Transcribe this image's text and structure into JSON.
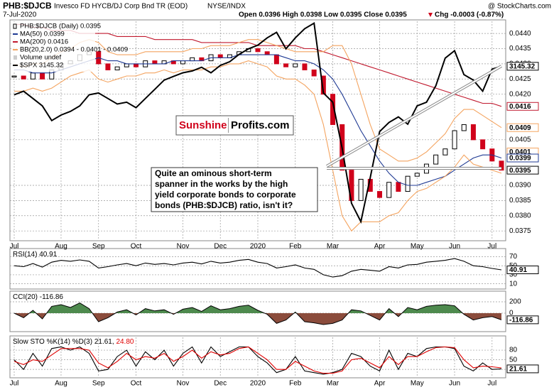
{
  "header": {
    "symbol": "PHB:$DJCB",
    "name": "Invesco FD HYCB/DJ Corp Bnd TR (EOD)",
    "exchange": "NYSE/INDX",
    "source": "@ StockCharts.com",
    "date": "7-Jul-2020",
    "ohlc": "Open 0.0396  High 0.0398  Low 0.0395  Close 0.0395",
    "change": "Chg -0.0003 (-0.87%)"
  },
  "logo": {
    "brand": "Sunshine",
    "domain": "Profits.com"
  },
  "chart_data": [
    {
      "type": "candlestick",
      "categories": [
        "Jul",
        null,
        null,
        null,
        null,
        "Aug",
        null,
        null,
        null,
        "Sep",
        null,
        null,
        null,
        "Oct",
        null,
        null,
        null,
        null,
        "Nov",
        null,
        null,
        null,
        "Dec",
        null,
        null,
        null,
        "2020",
        null,
        null,
        null,
        "Feb",
        null,
        null,
        null,
        "Mar",
        null,
        null,
        null,
        null,
        "Apr",
        null,
        null,
        null,
        "May",
        null,
        null,
        null,
        "Jun",
        null,
        null,
        null,
        "Jul",
        null
      ],
      "ylim": [
        0.0372,
        0.0444
      ],
      "y2lim": [
        2200,
        3390
      ],
      "grid": true,
      "yticks": [
        {
          "value": 0.0375,
          "label": "0.0375"
        },
        {
          "value": 0.038,
          "label": "0.0380"
        },
        {
          "value": 0.0385,
          "label": "0.0385"
        },
        {
          "value": 0.039,
          "label": "0.0390"
        },
        {
          "value": 0.0405,
          "label": "0.0405"
        },
        {
          "value": 0.042,
          "label": "0.0420"
        },
        {
          "value": 0.0425,
          "label": "0.0425"
        },
        {
          "value": 0.043,
          "label": "0.0430"
        },
        {
          "value": 0.0435,
          "label": "0.0435"
        },
        {
          "value": 0.044,
          "label": "0.0440"
        }
      ],
      "volume": "Volume undef",
      "series": [
        {
          "name": "PHB:$DJCB (Daily) 0.0395",
          "type": "candlestick",
          "color": "#000000",
          "color_down": "#d0021b",
          "values": [
            0.0426,
            0.0425,
            0.0427,
            0.0425,
            0.0428,
            0.043,
            0.0431,
            0.0433,
            0.0434,
            0.043,
            0.0428,
            0.0429,
            0.043,
            0.0429,
            0.0431,
            0.043,
            0.0431,
            0.043,
            0.0431,
            0.0432,
            0.0431,
            0.0433,
            0.0432,
            0.0433,
            0.0434,
            0.0435,
            0.0434,
            0.0433,
            0.043,
            0.0429,
            0.043,
            0.0428,
            0.0426,
            0.042,
            0.041,
            0.0395,
            0.0385,
            0.0392,
            0.0388,
            0.0386,
            0.0391,
            0.0388,
            0.0393,
            0.0394,
            0.0397,
            0.04,
            0.0402,
            0.0408,
            0.041,
            0.0405,
            0.0402,
            0.0398,
            0.0395
          ]
        },
        {
          "name": "MA(50) 0.0399",
          "type": "line",
          "color": "#1f3a93",
          "values": [
            0.0428,
            0.0428,
            0.0427,
            0.0427,
            0.0427,
            0.0428,
            0.0429,
            0.043,
            0.0431,
            0.0432,
            0.0431,
            0.0431,
            0.043,
            0.043,
            0.043,
            0.043,
            0.043,
            0.0431,
            0.0431,
            0.0431,
            0.0431,
            0.0432,
            0.0432,
            0.0432,
            0.0433,
            0.0433,
            0.0433,
            0.0433,
            0.0433,
            0.0432,
            0.0431,
            0.0431,
            0.043,
            0.0428,
            0.0425,
            0.042,
            0.0414,
            0.0408,
            0.0403,
            0.0398,
            0.0394,
            0.0391,
            0.039,
            0.039,
            0.0391,
            0.0392,
            0.0393,
            0.0395,
            0.0397,
            0.0399,
            0.04,
            0.04,
            0.0399
          ]
        },
        {
          "name": "MA(200) 0.0416",
          "type": "line",
          "color": "#c0182d",
          "values": [
            0.0443,
            0.0443,
            0.0442,
            0.0442,
            0.0441,
            0.0441,
            0.0441,
            0.044,
            0.044,
            0.044,
            0.044,
            0.0439,
            0.0439,
            0.0439,
            0.0439,
            0.0438,
            0.0438,
            0.0438,
            0.0438,
            0.0438,
            0.0437,
            0.0437,
            0.0437,
            0.0437,
            0.0437,
            0.0437,
            0.0436,
            0.0436,
            0.0436,
            0.0436,
            0.0436,
            0.0435,
            0.0435,
            0.0434,
            0.0433,
            0.0432,
            0.0431,
            0.043,
            0.0429,
            0.0428,
            0.0427,
            0.0426,
            0.0425,
            0.0424,
            0.0423,
            0.0422,
            0.0421,
            0.042,
            0.0419,
            0.0418,
            0.0417,
            0.0417,
            0.0416
          ]
        },
        {
          "name": "BB(20,2.0) 0.0394 - 0.0401 - 0.0409",
          "type": "line",
          "color": "#f4a460",
          "values": [
            0.043,
            0.0429,
            0.043,
            0.043,
            0.0432,
            0.0434,
            0.0435,
            0.0437,
            0.0438,
            0.0437,
            0.0434,
            0.0433,
            0.0433,
            0.0433,
            0.0434,
            0.0434,
            0.0434,
            0.0434,
            0.0434,
            0.0435,
            0.0435,
            0.0436,
            0.0436,
            0.0436,
            0.0437,
            0.0438,
            0.0438,
            0.0437,
            0.0436,
            0.0435,
            0.0434,
            0.0434,
            0.0434,
            0.0434,
            0.0436,
            0.0436,
            0.043,
            0.042,
            0.041,
            0.0402,
            0.04,
            0.0398,
            0.0398,
            0.0399,
            0.0401,
            0.0404,
            0.0407,
            0.0412,
            0.0415,
            0.0415,
            0.0413,
            0.0411,
            0.0409
          ]
        },
        {
          "type": "line",
          "color": "#f4a460",
          "values": [
            0.0421,
            0.0421,
            0.0422,
            0.0421,
            0.0422,
            0.0424,
            0.0426,
            0.0427,
            0.0428,
            0.0425,
            0.0424,
            0.0425,
            0.0426,
            0.0426,
            0.0427,
            0.0427,
            0.0428,
            0.0427,
            0.0428,
            0.0428,
            0.0428,
            0.0429,
            0.0429,
            0.043,
            0.043,
            0.0431,
            0.043,
            0.0429,
            0.0426,
            0.0425,
            0.0425,
            0.0423,
            0.042,
            0.041,
            0.0395,
            0.038,
            0.0375,
            0.0378,
            0.0378,
            0.0378,
            0.038,
            0.0381,
            0.0385,
            0.0388,
            0.0389,
            0.0391,
            0.0393,
            0.0396,
            0.04,
            0.0397,
            0.0396,
            0.0395,
            0.0394
          ]
        },
        {
          "name": "$SPX 3145.32",
          "type": "line",
          "color": "#000000",
          "axis": "y2",
          "width": 2,
          "values": [
            2990,
            3010,
            2970,
            2930,
            2850,
            2880,
            2900,
            2930,
            2990,
            3000,
            2970,
            2940,
            2950,
            2920,
            2970,
            3020,
            3070,
            3090,
            3110,
            3120,
            3140,
            3110,
            3150,
            3170,
            3210,
            3240,
            3260,
            3300,
            3330,
            3240,
            3300,
            3350,
            3380,
            3000,
            2950,
            2700,
            2400,
            2300,
            2540,
            2790,
            2840,
            2870,
            2830,
            2930,
            2950,
            3040,
            3190,
            3230,
            3100,
            3070,
            3010,
            3130,
            3145.32
          ]
        }
      ],
      "tags": [
        {
          "value": 0.0416,
          "label": "0.0416",
          "color": "#c0182d"
        },
        {
          "value": 0.0409,
          "label": "0.0409",
          "color": "#f4a460"
        },
        {
          "value": 0.0401,
          "label": "0.0401",
          "color": "#f4a460"
        },
        {
          "value": 0.0399,
          "label": "0.0399",
          "color": "#1f3a93"
        },
        {
          "value": 0.0395,
          "label": "0.0395",
          "color": "#000000"
        },
        {
          "value": 3145.32,
          "label": "3145.32",
          "color": "#000000",
          "axis": "y2"
        }
      ],
      "annotation": [
        "Quite an ominous short-term",
        "spanner in the works by the high",
        "yield corporate bonds to corporate",
        "bonds (PHB:$DJCB) ratio, isn't it?"
      ]
    },
    {
      "type": "line",
      "title": "RSI(14) 40.91",
      "ylim": [
        0,
        85
      ],
      "yticks": [
        10,
        30,
        50,
        70
      ],
      "grid": true,
      "series": [
        {
          "color": "#000000",
          "values": [
            50,
            48,
            55,
            47,
            58,
            62,
            60,
            63,
            60,
            45,
            48,
            52,
            55,
            50,
            56,
            53,
            55,
            52,
            56,
            58,
            54,
            60,
            56,
            58,
            62,
            64,
            58,
            55,
            45,
            48,
            52,
            45,
            42,
            30,
            25,
            28,
            38,
            42,
            40,
            38,
            48,
            45,
            52,
            53,
            58,
            60,
            62,
            66,
            60,
            50,
            48,
            44,
            40.91
          ]
        }
      ],
      "tags": [
        {
          "value": 40.91,
          "label": "40.91",
          "color": "#000000"
        }
      ]
    },
    {
      "type": "area",
      "title": "CCI(20) -116.86",
      "ylim": [
        -312,
        362
      ],
      "yticks": [
        0,
        200
      ],
      "grid": true,
      "series": [
        {
          "color": "#000000",
          "color_up": "#4e8a4e",
          "color_down": "#8b4c3c",
          "values": [
            0,
            -80,
            50,
            -100,
            120,
            150,
            100,
            180,
            80,
            -150,
            -80,
            20,
            60,
            -30,
            80,
            40,
            60,
            -20,
            70,
            100,
            30,
            130,
            60,
            80,
            120,
            140,
            50,
            -20,
            -180,
            -120,
            20,
            -150,
            -170,
            -200,
            -180,
            -120,
            60,
            40,
            -40,
            -120,
            80,
            -60,
            100,
            60,
            120,
            140,
            150,
            130,
            -20,
            -120,
            -80,
            -60,
            -116.86
          ]
        }
      ],
      "tags": [
        {
          "value": -116.86,
          "label": "-116.86",
          "color": "#000000"
        }
      ]
    },
    {
      "type": "line",
      "title": "Slow STO %K(14) %D(3) 21.61,",
      "title_d": "24.80",
      "ylim": [
        -4,
        120
      ],
      "yticks": [
        20,
        50,
        80
      ],
      "grid": true,
      "categories": [
        "Jul",
        null,
        null,
        null,
        null,
        "Aug",
        null,
        null,
        null,
        "Sep",
        null,
        null,
        null,
        "Oct",
        null,
        null,
        null,
        null,
        "Nov",
        null,
        null,
        null,
        "Dec",
        null,
        null,
        null,
        "2020",
        null,
        null,
        null,
        "Feb",
        null,
        null,
        null,
        "Mar",
        null,
        null,
        null,
        null,
        "Apr",
        null,
        null,
        null,
        "May",
        null,
        null,
        null,
        "Jun",
        null,
        null,
        null,
        "Jul",
        null
      ],
      "series": [
        {
          "color": "#000000",
          "values": [
            50,
            20,
            70,
            30,
            85,
            90,
            80,
            90,
            70,
            15,
            20,
            60,
            80,
            30,
            75,
            50,
            80,
            30,
            70,
            90,
            40,
            90,
            60,
            75,
            90,
            90,
            60,
            40,
            10,
            20,
            60,
            15,
            10,
            5,
            10,
            20,
            70,
            60,
            30,
            15,
            80,
            20,
            70,
            60,
            85,
            90,
            90,
            85,
            30,
            15,
            40,
            20,
            21.61
          ]
        },
        {
          "color": "#e00000",
          "values": [
            45,
            35,
            50,
            45,
            65,
            85,
            85,
            85,
            80,
            40,
            25,
            45,
            70,
            50,
            60,
            55,
            70,
            45,
            60,
            80,
            55,
            75,
            65,
            70,
            85,
            90,
            70,
            50,
            20,
            20,
            45,
            30,
            15,
            8,
            8,
            15,
            50,
            55,
            40,
            25,
            60,
            35,
            60,
            60,
            75,
            88,
            90,
            88,
            50,
            25,
            30,
            28,
            24.8
          ]
        }
      ],
      "tags": [
        {
          "value": 21.61,
          "label": "21.61",
          "color": "#000000"
        }
      ]
    }
  ]
}
